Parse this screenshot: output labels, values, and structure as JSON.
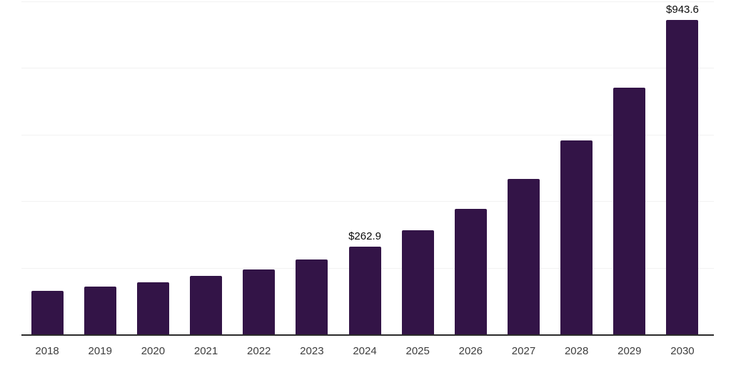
{
  "chart_data": {
    "type": "bar",
    "title": "",
    "xlabel": "",
    "ylabel": "",
    "categories": [
      "2018",
      "2019",
      "2020",
      "2021",
      "2022",
      "2023",
      "2024",
      "2025",
      "2026",
      "2027",
      "2028",
      "2029",
      "2030"
    ],
    "values": [
      131,
      144,
      157,
      176,
      194,
      225,
      262.9,
      313,
      377,
      467,
      582,
      740,
      943.6
    ],
    "data_labels": [
      null,
      null,
      null,
      null,
      null,
      null,
      "$262.9",
      null,
      null,
      null,
      null,
      null,
      "$943.6"
    ],
    "ylim": [
      0,
      1000
    ],
    "gridline_values": [
      200,
      400,
      600,
      800,
      1000
    ],
    "grid": true,
    "legend_position": "none",
    "colors": {
      "bar": "#331447",
      "gridline": "#f2f2f2",
      "axis_line": "#2b2b2b",
      "x_tick_label": "#3d3d3d",
      "data_label": "#0a0a0a",
      "background": "#ffffff"
    }
  }
}
